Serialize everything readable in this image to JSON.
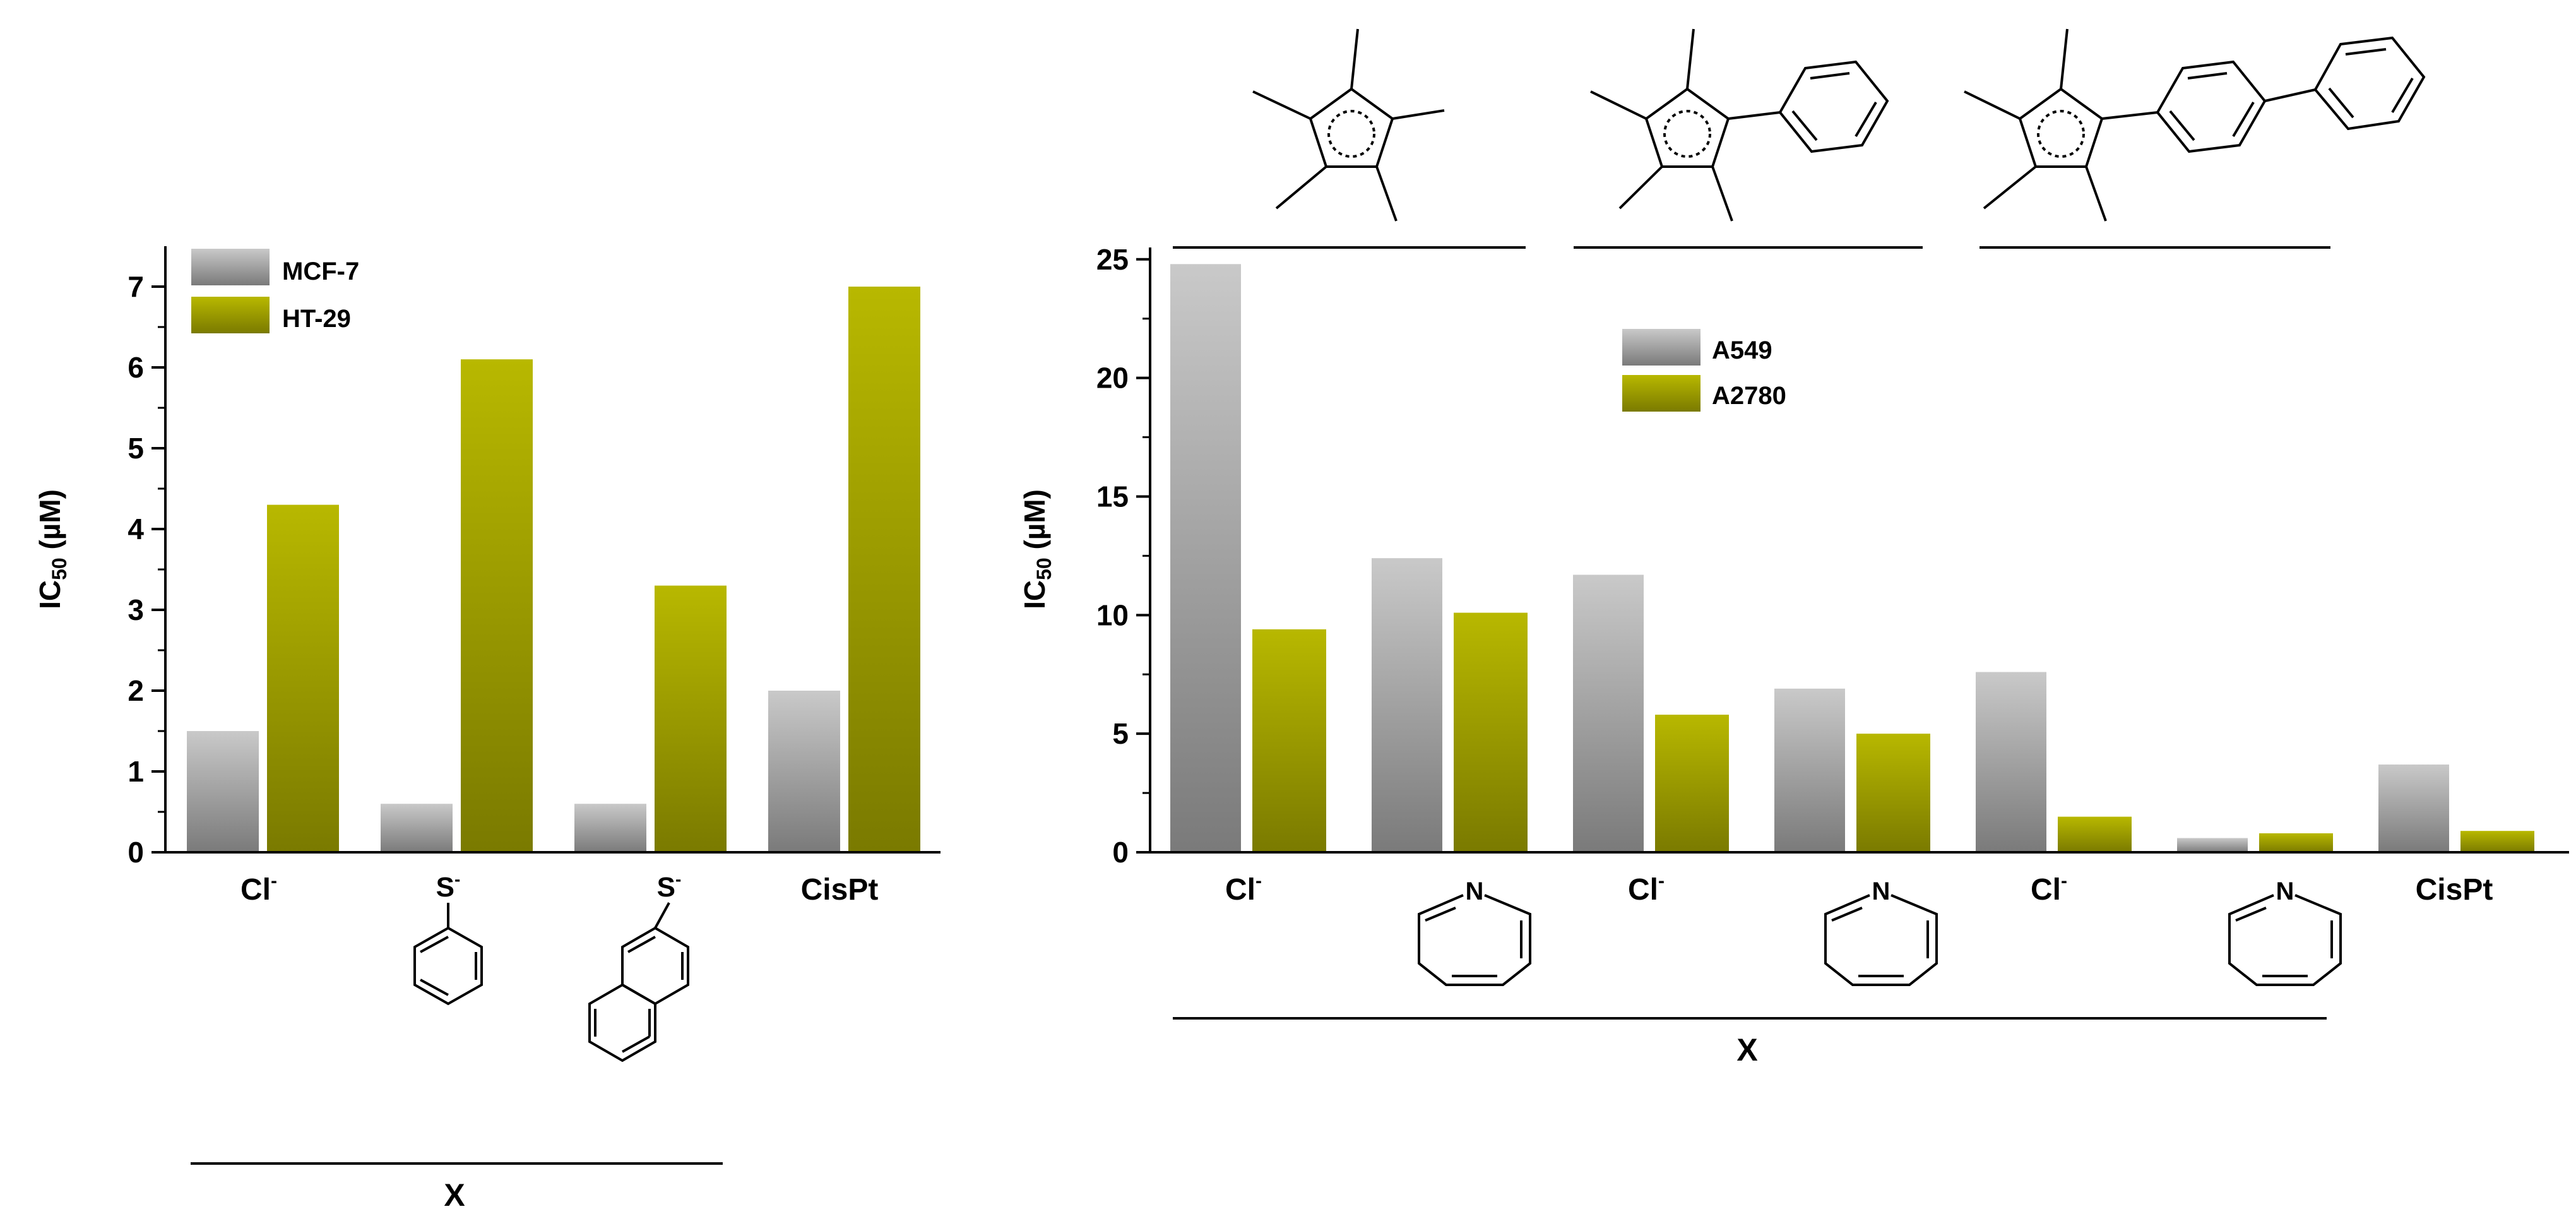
{
  "colors": {
    "gray_light": "#c9c9c9",
    "gray_dark": "#7a7a7a",
    "olive_light": "#b8b800",
    "olive_dark": "#7a7a00",
    "sulfur": "#8a8a00",
    "nitrogen": "#0000cc"
  },
  "chart_data": [
    {
      "type": "bar",
      "ylabel": "IC",
      "ylabel_sub": "50",
      "ylabel_unit": " (µM)",
      "xlabel": "X",
      "ylim": [
        0,
        7.5
      ],
      "yticks": [
        "0",
        "1",
        "2",
        "3",
        "4",
        "5",
        "6",
        "7"
      ],
      "legend_position": "top-left",
      "categories": [
        "Cl⁻",
        "thiophenolate",
        "2-naphthalenethiolate",
        "CisPt"
      ],
      "category_labels": [
        {
          "kind": "text",
          "text": "Cl",
          "sup": "-"
        },
        {
          "kind": "structure",
          "structure": "thiophenolate-icon",
          "atom": "S",
          "sup": "-"
        },
        {
          "kind": "structure",
          "structure": "naphthalenethiolate-icon",
          "atom": "S",
          "sup": "-"
        },
        {
          "kind": "text",
          "text": "CisPt",
          "sup": ""
        }
      ],
      "series": [
        {
          "name": "MCF-7",
          "color": "gray",
          "values": [
            1.5,
            0.6,
            0.6,
            2.0
          ]
        },
        {
          "name": "HT-29",
          "color": "olive",
          "values": [
            4.3,
            6.1,
            3.3,
            7.0
          ]
        }
      ]
    },
    {
      "type": "bar",
      "ylabel": "IC",
      "ylabel_sub": "50",
      "ylabel_unit": " (µM)",
      "xlabel": "X",
      "ylim": [
        0,
        25.5
      ],
      "yticks": [
        "0",
        "5",
        "10",
        "15",
        "20",
        "25"
      ],
      "legend_position": "top-center",
      "categories": [
        "Cl⁻",
        "pyridine",
        "Cl⁻",
        "pyridine",
        "Cl⁻",
        "pyridine",
        "CisPt"
      ],
      "category_labels": [
        {
          "kind": "text",
          "text": "Cl",
          "sup": "-"
        },
        {
          "kind": "structure",
          "structure": "pyridine-icon",
          "atom": "N",
          "sup": ""
        },
        {
          "kind": "text",
          "text": "Cl",
          "sup": "-"
        },
        {
          "kind": "structure",
          "structure": "pyridine-icon",
          "atom": "N",
          "sup": ""
        },
        {
          "kind": "text",
          "text": "Cl",
          "sup": "-"
        },
        {
          "kind": "structure",
          "structure": "pyridine-icon",
          "atom": "N",
          "sup": ""
        },
        {
          "kind": "text",
          "text": "CisPt",
          "sup": ""
        }
      ],
      "groups": [
        {
          "structure": "pentamethylcyclopentadienyl-icon",
          "categories": [
            0,
            1
          ]
        },
        {
          "structure": "tetramethylphenylcyclopentadienyl-icon",
          "categories": [
            2,
            3
          ]
        },
        {
          "structure": "tetramethylbiphenylcyclopentadienyl-icon",
          "categories": [
            4,
            5
          ]
        }
      ],
      "series": [
        {
          "name": "A549",
          "color": "gray",
          "values": [
            24.8,
            12.4,
            11.7,
            6.9,
            7.6,
            0.6,
            3.7
          ]
        },
        {
          "name": "A2780",
          "color": "olive",
          "values": [
            9.4,
            10.1,
            5.8,
            5.0,
            1.5,
            0.8,
            0.9
          ]
        }
      ]
    }
  ]
}
